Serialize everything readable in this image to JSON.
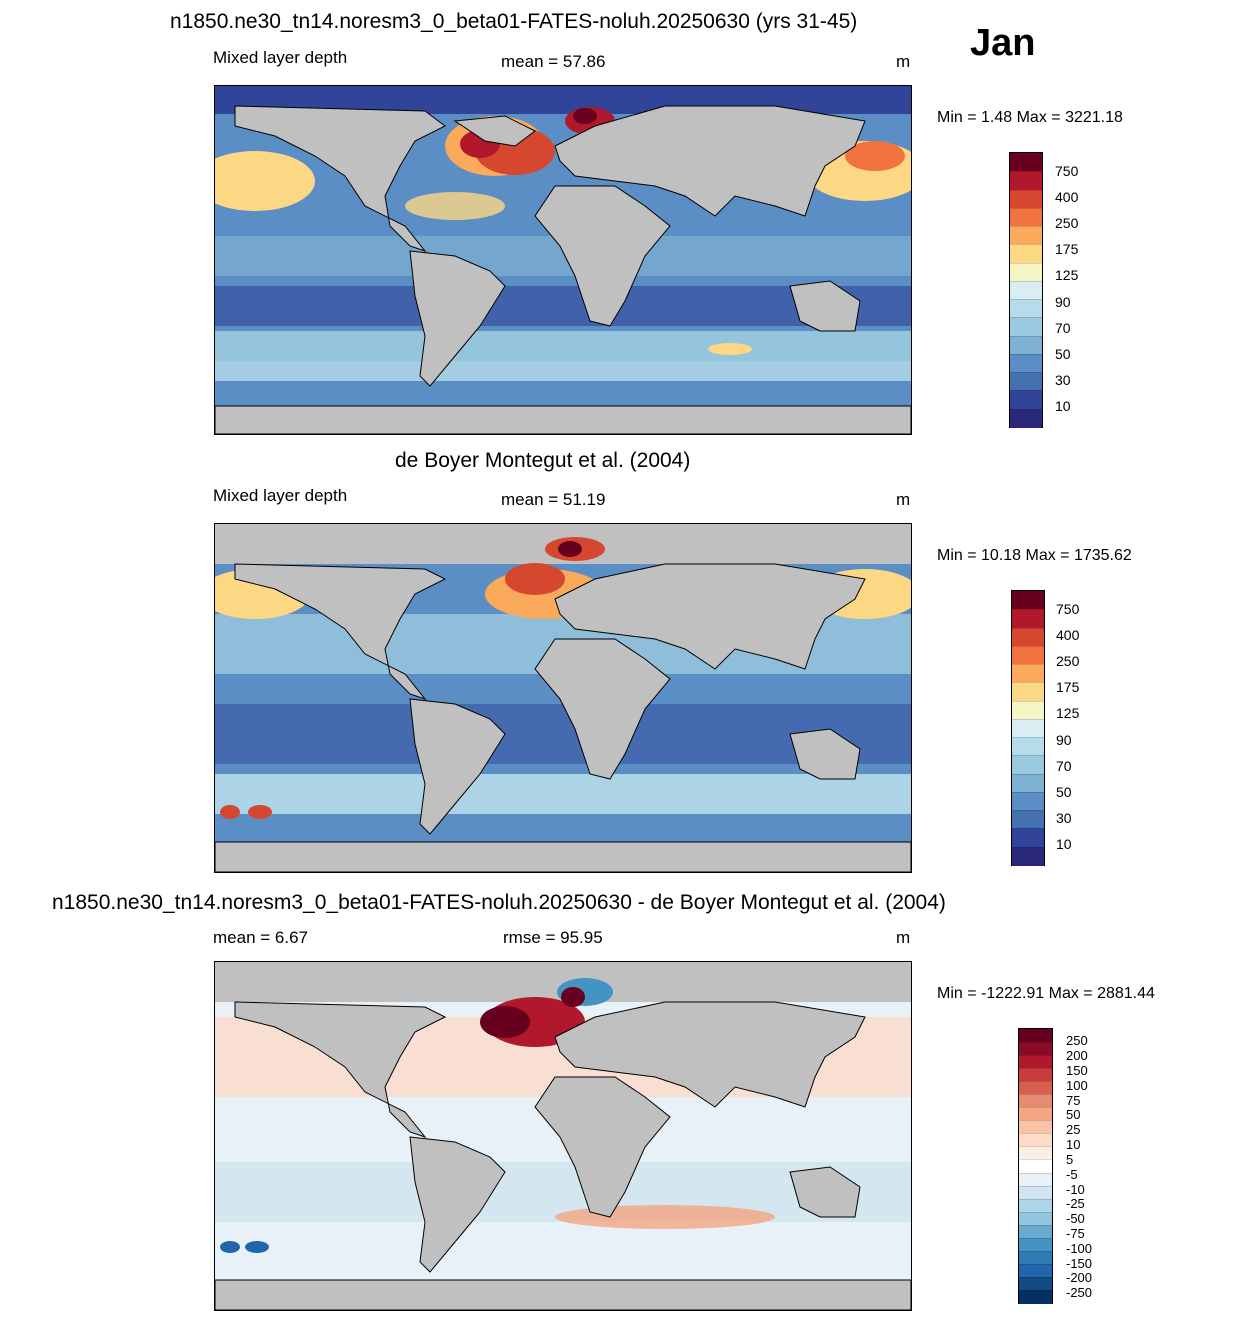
{
  "month": "Jan",
  "panels": [
    {
      "title": "n1850.ne30_tn14.noresm3_0_beta01-FATES-noluh.20250630 (yrs 31-45)",
      "left_label": "Mixed layer depth",
      "center_label": "mean =  57.86",
      "unit": "m",
      "minmax": "Min =    1.48 Max = 3221.18",
      "colorbar": {
        "labels": [
          "750",
          "400",
          "250",
          "175",
          "125",
          "90",
          "70",
          "50",
          "30",
          "10"
        ],
        "colors": [
          "#67001f",
          "#b2182b",
          "#d6472f",
          "#f1733f",
          "#fbaa5b",
          "#fdd884",
          "#f6f5c5",
          "#d9eef3",
          "#b6dcea",
          "#9bcae0",
          "#7fb1d3",
          "#5b8ec4",
          "#4470b0",
          "#30459a",
          "#2c2879"
        ]
      }
    },
    {
      "title": "de Boyer Montegut et al. (2004)",
      "left_label": "Mixed layer depth",
      "center_label": "mean =  51.19",
      "unit": "m",
      "minmax": "Min =  10.18 Max = 1735.62",
      "colorbar": {
        "labels": [
          "750",
          "400",
          "250",
          "175",
          "125",
          "90",
          "70",
          "50",
          "30",
          "10"
        ],
        "colors": [
          "#67001f",
          "#b2182b",
          "#d6472f",
          "#f1733f",
          "#fbaa5b",
          "#fdd884",
          "#f6f5c5",
          "#d9eef3",
          "#b6dcea",
          "#9bcae0",
          "#7fb1d3",
          "#5b8ec4",
          "#4470b0",
          "#30459a",
          "#2c2879"
        ]
      }
    },
    {
      "title": "n1850.ne30_tn14.noresm3_0_beta01-FATES-noluh.20250630 - de Boyer Montegut et al. (2004)",
      "left_label": "mean =    6.67",
      "center_label": "rmse =  95.95",
      "unit": "m",
      "minmax": "Min = -1222.91 Max = 2881.44",
      "colorbar": {
        "labels": [
          "250",
          "200",
          "150",
          "100",
          "75",
          "50",
          "25",
          "10",
          "5",
          "-5",
          "-10",
          "-25",
          "-50",
          "-75",
          "-100",
          "-150",
          "-200",
          "-250"
        ],
        "colors": [
          "#67001f",
          "#8a0b25",
          "#b2182b",
          "#c93a3b",
          "#d6604d",
          "#e68a72",
          "#f4a582",
          "#f9c3a8",
          "#fddbc7",
          "#fdeee4",
          "#ffffff",
          "#e8f1f8",
          "#d1e5f0",
          "#b0d4e8",
          "#92c5de",
          "#6aaad0",
          "#4393c3",
          "#2f79b5",
          "#2166ac",
          "#134b87",
          "#053061"
        ]
      }
    }
  ]
}
